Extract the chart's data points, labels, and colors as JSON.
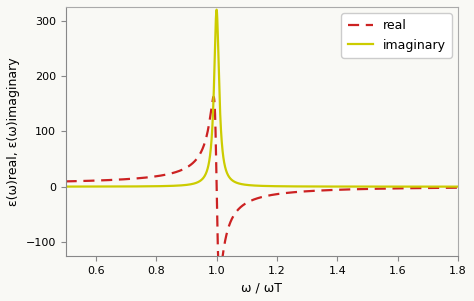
{
  "title": "",
  "xlabel": "ω / ωT",
  "ylabel": "ε(ω)real, ε(ω)imaginary",
  "xlim": [
    0.5,
    1.8
  ],
  "ylim": [
    -125,
    325
  ],
  "yticks": [
    -100,
    0,
    100,
    200,
    300
  ],
  "xticks": [
    0.6,
    0.8,
    1.0,
    1.2,
    1.4,
    1.6,
    1.8
  ],
  "real_color": "#cc2222",
  "imag_color": "#cccc00",
  "real_label": "real",
  "imag_label": "imaginary",
  "real_linestyle": "dashed",
  "imag_linestyle": "solid",
  "linewidth": 1.6,
  "legend_fontsize": 9,
  "axis_fontsize": 9,
  "tick_fontsize": 8,
  "omega_T": 1.0,
  "omega_p": 2.53,
  "gamma": 0.02,
  "eps_inf": 1.0,
  "background_color": "#f9f9f5"
}
